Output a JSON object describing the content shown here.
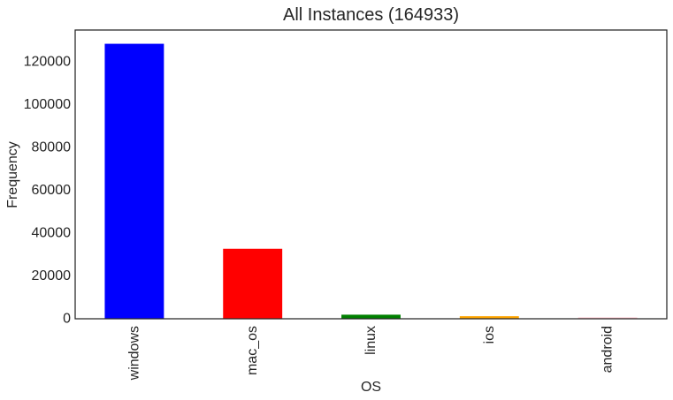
{
  "chart_data": {
    "type": "bar",
    "title": "All Instances (164933)",
    "xlabel": "OS",
    "ylabel": "Frequency",
    "categories": [
      "windows",
      "mac_os",
      "linux",
      "ios",
      "android"
    ],
    "values": [
      128500,
      32700,
      1900,
      1200,
      600
    ],
    "colors": [
      "#0000ff",
      "#ff0000",
      "#008000",
      "#ffa500",
      "#ffc0cb"
    ],
    "ylim": [
      0,
      134925
    ],
    "yticks": [
      0,
      20000,
      40000,
      60000,
      80000,
      100000,
      120000
    ],
    "ytick_labels": [
      "0",
      "20000",
      "40000",
      "60000",
      "80000",
      "100000",
      "120000"
    ],
    "grid": false,
    "legend": "none"
  }
}
